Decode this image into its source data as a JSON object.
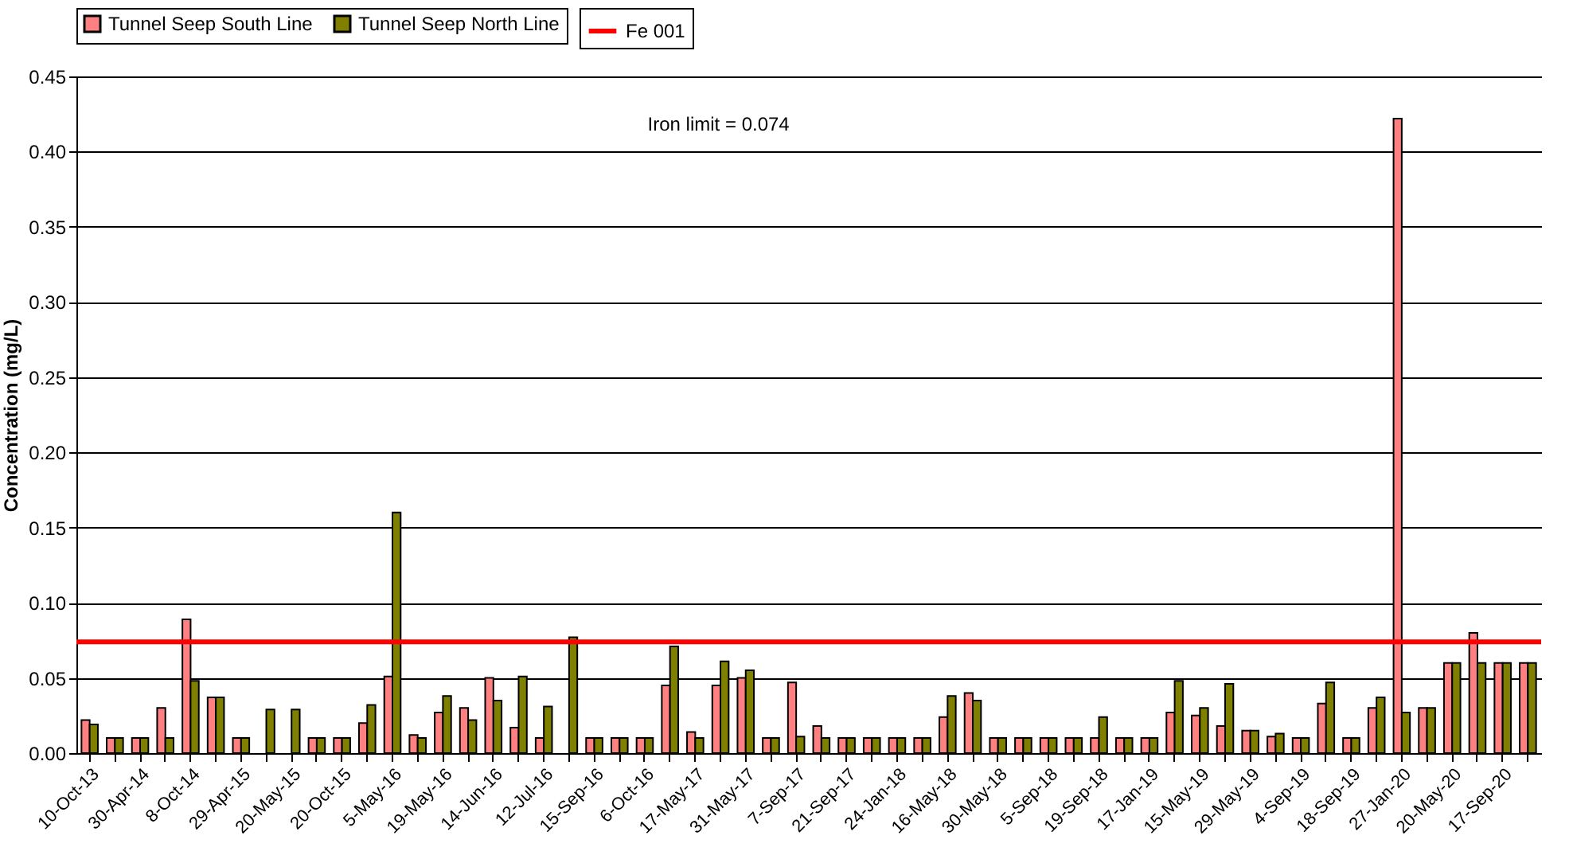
{
  "chart_data": {
    "type": "bar",
    "ylabel": "Concentration (mg/L)",
    "categories": [
      "10-Oct-13",
      null,
      "30-Apr-14",
      null,
      "8-Oct-14",
      null,
      "29-Apr-15",
      null,
      "20-May-15",
      null,
      "20-Oct-15",
      null,
      "5-May-16",
      null,
      "19-May-16",
      null,
      "14-Jun-16",
      null,
      "12-Jul-16",
      null,
      "15-Sep-16",
      null,
      "6-Oct-16",
      null,
      "17-May-17",
      null,
      "31-May-17",
      null,
      "7-Sep-17",
      null,
      "21-Sep-17",
      null,
      "24-Jan-18",
      null,
      "16-May-18",
      null,
      "30-May-18",
      null,
      "5-Sep-18",
      null,
      "19-Sep-18",
      null,
      "17-Jan-19",
      null,
      "15-May-19",
      null,
      "29-May-19",
      null,
      "4-Sep-19",
      null,
      "18-Sep-19",
      null,
      "27-Jan-20",
      null,
      "20-May-20",
      null,
      "17-Sep-20",
      null
    ],
    "series": [
      {
        "name": "Tunnel Seep South Line",
        "color": "#ff8080",
        "values": [
          0.022,
          0.01,
          0.01,
          0.03,
          0.089,
          0.037,
          0.01,
          null,
          null,
          0.01,
          0.01,
          0.02,
          0.051,
          0.012,
          0.027,
          0.03,
          0.05,
          0.017,
          0.01,
          null,
          0.01,
          0.01,
          0.01,
          0.045,
          0.014,
          0.045,
          0.05,
          0.01,
          0.047,
          0.018,
          0.01,
          0.01,
          0.01,
          0.01,
          0.024,
          0.04,
          0.01,
          0.01,
          0.01,
          0.01,
          0.01,
          0.01,
          0.01,
          0.027,
          0.025,
          0.018,
          0.015,
          0.011,
          0.01,
          0.033,
          0.01,
          0.03,
          0.422,
          0.03,
          0.06,
          0.08,
          0.06,
          0.06
        ]
      },
      {
        "name": "Tunnel Seep North Line",
        "color": "#808000",
        "values": [
          0.019,
          0.01,
          0.01,
          0.01,
          0.048,
          0.037,
          0.01,
          0.029,
          0.029,
          0.01,
          0.01,
          0.032,
          0.16,
          0.01,
          0.038,
          0.022,
          0.035,
          0.051,
          0.031,
          0.077,
          0.01,
          0.01,
          0.01,
          0.071,
          0.01,
          0.061,
          0.055,
          0.01,
          0.011,
          0.01,
          0.01,
          0.01,
          0.01,
          0.01,
          0.038,
          0.035,
          0.01,
          0.01,
          0.01,
          0.01,
          0.024,
          0.01,
          0.01,
          0.048,
          0.03,
          0.046,
          0.015,
          0.013,
          0.01,
          0.047,
          0.01,
          0.037,
          0.027,
          0.03,
          0.06,
          0.06,
          0.06,
          0.06
        ]
      }
    ],
    "ylim": [
      0,
      0.45
    ],
    "yticks": [
      {
        "value": 0,
        "label": "0.00"
      },
      {
        "value": 0.05,
        "label": "0.05"
      },
      {
        "value": 0.1,
        "label": "0.10"
      },
      {
        "value": 0.15,
        "label": "0.15"
      },
      {
        "value": 0.2,
        "label": "0.20"
      },
      {
        "value": 0.25,
        "label": "0.25"
      },
      {
        "value": 0.3,
        "label": "0.30"
      },
      {
        "value": 0.35,
        "label": "0.35"
      },
      {
        "value": 0.4,
        "label": "0.40"
      },
      {
        "value": 0.45,
        "label": "0.45"
      }
    ],
    "grid": "y",
    "legend": "top",
    "ref_lines": [
      {
        "axis": "y",
        "value": 0.074,
        "label": "Fe 001",
        "color": "#ff0000",
        "line_style": "solid"
      }
    ],
    "annotations": [
      "Iron limit = 0.074"
    ]
  }
}
